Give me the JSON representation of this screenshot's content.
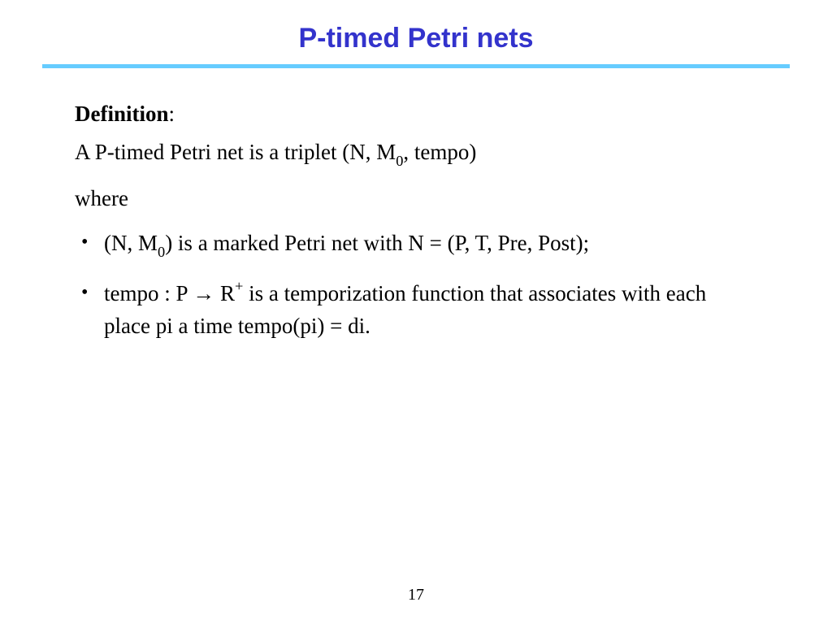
{
  "title": "P-timed Petri nets",
  "title_color": "#3333cc",
  "divider_color": "#66ccff",
  "background_color": "#ffffff",
  "text_color": "#000000",
  "title_fontsize": 34,
  "body_fontsize": 27,
  "definition_label": "Definition",
  "definition_text_pre": "A P-timed Petri net is a triplet (N, M",
  "definition_sub": "0",
  "definition_text_post": ", tempo)",
  "where_label": "where",
  "bullets": [
    {
      "pre": "(N, M",
      "sub": "0",
      "post": ") is a marked Petri net with N = (P, T, Pre, Post);"
    },
    {
      "pre": "tempo : P ",
      "arrow": "→",
      "mid": " R",
      "sup": "+",
      "post": " is a temporization function that associates with each place pi a time tempo(pi) = di."
    }
  ],
  "page_number": "17"
}
